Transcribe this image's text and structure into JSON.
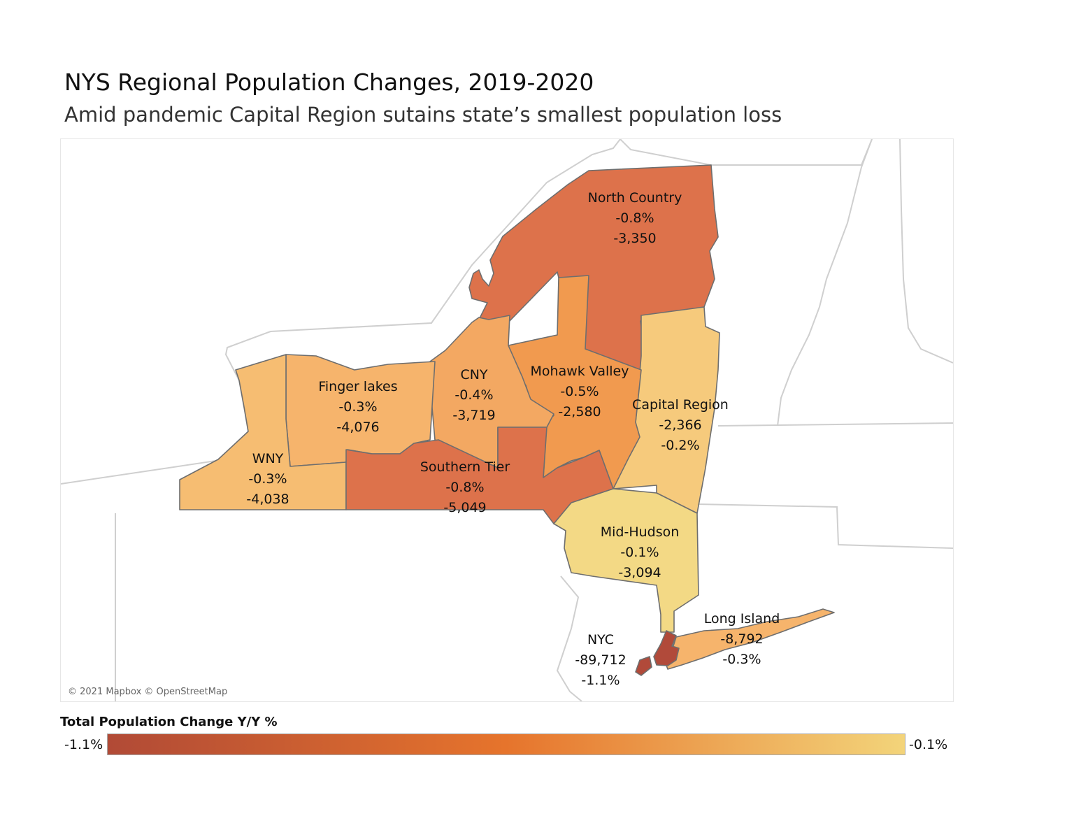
{
  "title": "NYS Regional Population Changes, 2019-2020",
  "subtitle": "Amid pandemic Capital Region sutains state’s smallest population loss",
  "attribution": "© 2021 Mapbox © OpenStreetMap",
  "legend": {
    "title": "Total Population Change Y/Y %",
    "min_label": "-1.1%",
    "max_label": "-0.1%",
    "gradient_colors": [
      "#b14a36",
      "#e6742c",
      "#f3d47a"
    ]
  },
  "regions": {
    "north_country": {
      "name": "North Country",
      "line2": "-0.8%",
      "line3": "-3,350",
      "pct": -0.8,
      "color": "#dd724b"
    },
    "wny": {
      "name": "WNY",
      "line2": "-0.3%",
      "line3": "-4,038",
      "pct": -0.3,
      "color": "#f6bd72"
    },
    "finger_lakes": {
      "name": "Finger lakes",
      "line2": "-0.3%",
      "line3": "-4,076",
      "pct": -0.3,
      "color": "#f6b46c"
    },
    "cny": {
      "name": "CNY",
      "line2": "-0.4%",
      "line3": "-3,719",
      "pct": -0.4,
      "color": "#f3a862"
    },
    "mohawk_valley": {
      "name": "Mohawk Valley",
      "line2": "-0.5%",
      "line3": "-2,580",
      "pct": -0.5,
      "color": "#f19a4f"
    },
    "capital_region": {
      "name": "Capital Region",
      "line2": "-2,366",
      "line3": "-0.2%",
      "pct": -0.2,
      "color": "#f6ca7c"
    },
    "southern_tier": {
      "name": "Southern Tier",
      "line2": "-0.8%",
      "line3": "-5,049",
      "pct": -0.8,
      "color": "#dd724b"
    },
    "mid_hudson": {
      "name": "Mid-Hudson",
      "line2": "-0.1%",
      "line3": "-3,094",
      "pct": -0.1,
      "color": "#f3d985"
    },
    "long_island": {
      "name": "Long Island",
      "line2": "-8,792",
      "line3": "-0.3%",
      "pct": -0.3,
      "color": "#f6b46c"
    },
    "nyc": {
      "name": "NYC",
      "line2": "-89,712",
      "line3": "-1.1%",
      "pct": -1.1,
      "color": "#b14a3a"
    }
  }
}
